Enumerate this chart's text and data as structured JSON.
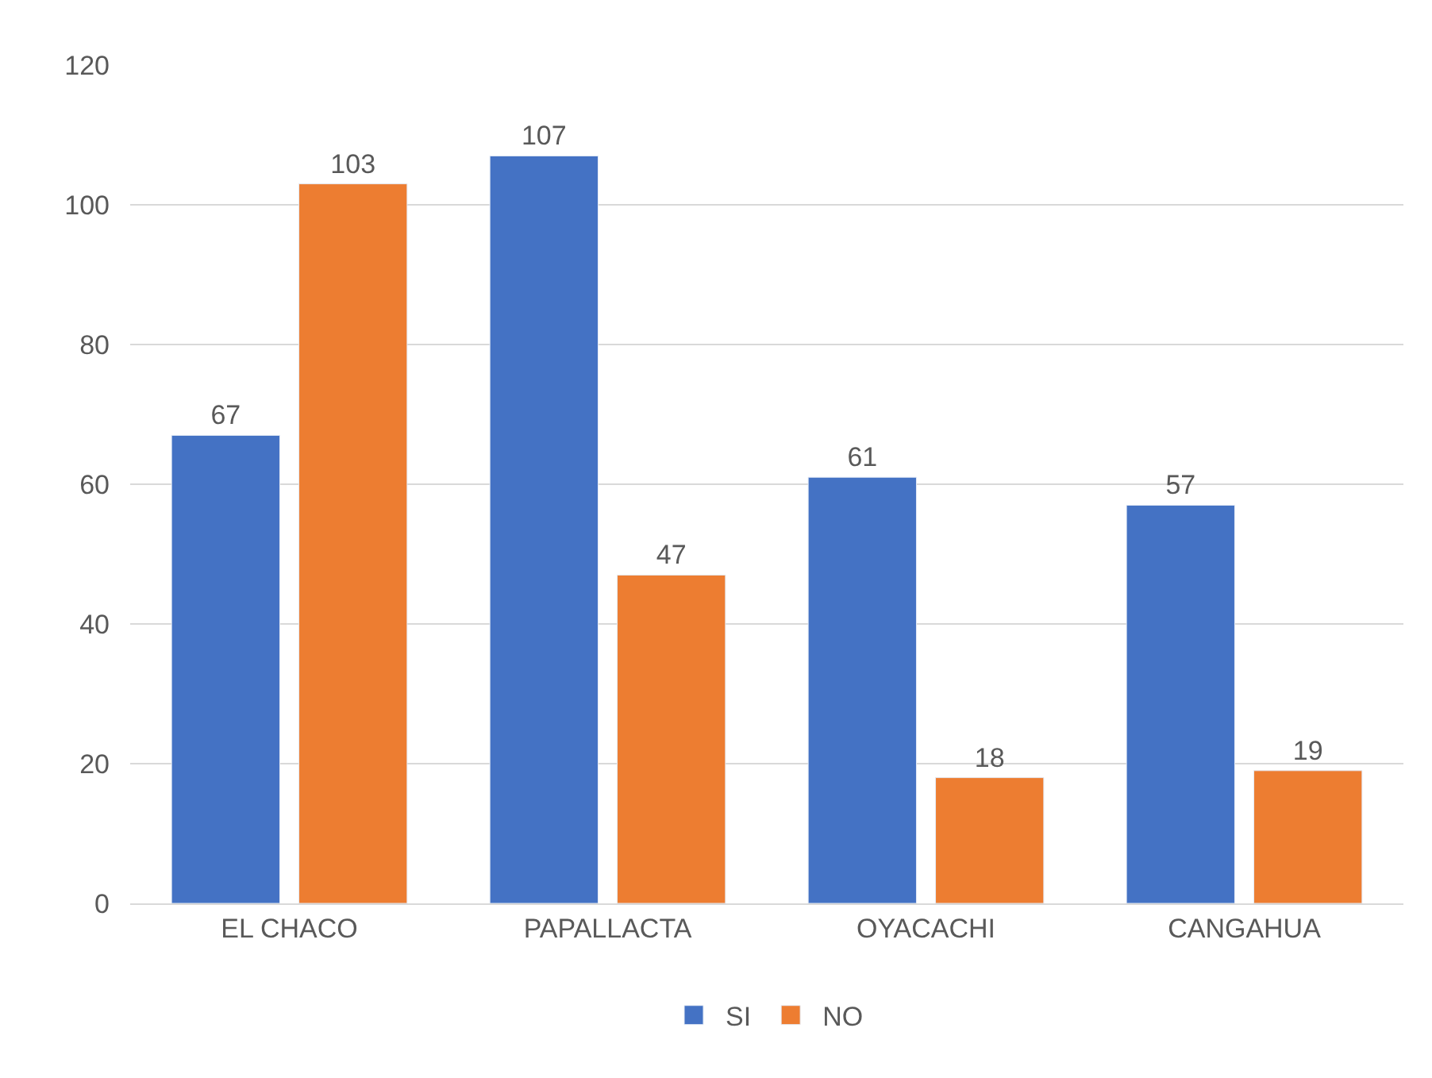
{
  "chart_data": {
    "type": "bar",
    "categories": [
      "EL CHACO",
      "PAPALLACTA",
      "OYACACHI",
      "CANGAHUA"
    ],
    "series": [
      {
        "name": "SI",
        "color": "#4472c4",
        "values": [
          67,
          107,
          61,
          57
        ]
      },
      {
        "name": "NO",
        "color": "#ed7d31",
        "values": [
          103,
          47,
          18,
          19
        ]
      }
    ],
    "ylim": [
      0,
      120
    ],
    "yticks": [
      0,
      20,
      40,
      60,
      80,
      100,
      120
    ],
    "grid": "y",
    "legend": "bottom",
    "data_labels": true
  }
}
